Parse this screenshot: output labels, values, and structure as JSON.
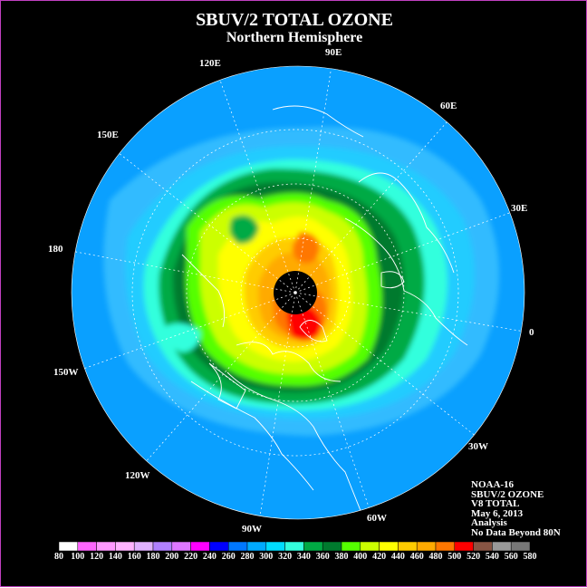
{
  "title": "SBUV/2 TOTAL OZONE",
  "subtitle": "Northern Hemisphere",
  "longitude_labels": {
    "e90": "90E",
    "e60": "60E",
    "e30": "30E",
    "zero": "0",
    "w30": "30W",
    "w60": "60W",
    "w90": "90W",
    "w120": "120W",
    "w150": "150W",
    "d180": "180",
    "e150": "150E",
    "e120": "120E"
  },
  "info": {
    "satellite": "NOAA-16",
    "product": "SBUV/2 OZONE",
    "version": "V8 TOTAL",
    "date": "May 6, 2013",
    "type": "Analysis",
    "note": "No Data Beyond 80N"
  },
  "legend": {
    "ticks": [
      "80",
      "100",
      "120",
      "140",
      "160",
      "180",
      "200",
      "220",
      "240",
      "260",
      "280",
      "300",
      "320",
      "340",
      "360",
      "380",
      "400",
      "420",
      "440",
      "460",
      "480",
      "500",
      "520",
      "540",
      "560",
      "580"
    ],
    "colors": [
      "#ffffff",
      "#ff66ff",
      "#ff99ff",
      "#ffb3ff",
      "#e0b0ff",
      "#b080ff",
      "#dd77ff",
      "#ff00ff",
      "#0000ff",
      "#0077ff",
      "#00aaff",
      "#00ddff",
      "#33ffdd",
      "#00aa44",
      "#007a2e",
      "#55ff00",
      "#ccff00",
      "#ffff00",
      "#ffcc00",
      "#ffaa00",
      "#ff7700",
      "#ff0000",
      "#885544",
      "#999999",
      "#777777",
      "#555555"
    ]
  },
  "colors": {
    "background": "#000000",
    "border": "#c040c0",
    "ocean_base": "#33aaff",
    "land_lines": "#ffffff"
  }
}
